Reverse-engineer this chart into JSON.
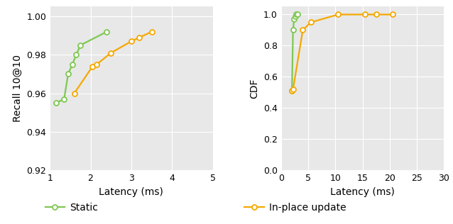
{
  "left": {
    "static_x": [
      1.15,
      1.35,
      1.45,
      1.55,
      1.65,
      1.75,
      2.4
    ],
    "static_y": [
      0.955,
      0.957,
      0.97,
      0.975,
      0.98,
      0.985,
      0.992
    ],
    "inplace_x": [
      1.6,
      2.05,
      2.15,
      2.5,
      3.0,
      3.2,
      3.5
    ],
    "inplace_y": [
      0.96,
      0.974,
      0.975,
      0.981,
      0.987,
      0.989,
      0.992
    ],
    "xlabel": "Latency (ms)",
    "ylabel": "Recall 10@10",
    "xlim": [
      1,
      5
    ],
    "ylim": [
      0.92,
      1.005
    ],
    "yticks": [
      0.92,
      0.94,
      0.96,
      0.98,
      1.0
    ],
    "xticks": [
      1,
      2,
      3,
      4,
      5
    ]
  },
  "right": {
    "static_x": [
      2.0,
      2.2,
      2.4,
      2.6,
      2.8,
      3.0
    ],
    "static_y": [
      0.51,
      0.9,
      0.97,
      0.99,
      1.0,
      1.0
    ],
    "inplace_x": [
      2.0,
      2.2,
      4.0,
      5.5,
      10.5,
      15.5,
      17.5,
      20.5
    ],
    "inplace_y": [
      0.51,
      0.52,
      0.9,
      0.95,
      1.0,
      1.0,
      1.0,
      1.0
    ],
    "xlabel": "Latency (ms)",
    "ylabel": "CDF",
    "xlim": [
      0,
      30
    ],
    "ylim": [
      0,
      1.05
    ],
    "yticks": [
      0,
      0.2,
      0.4,
      0.6,
      0.8,
      1.0
    ],
    "xticks": [
      0,
      5,
      10,
      15,
      20,
      25,
      30
    ]
  },
  "static_color": "#7ec850",
  "inplace_color": "#f5a800",
  "static_label": "Static",
  "inplace_label": "In-place update",
  "marker": "o",
  "markersize": 5,
  "linewidth": 1.6,
  "legend_fontsize": 10,
  "axis_fontsize": 10,
  "tick_fontsize": 9,
  "background_color": "#e8e8e8"
}
